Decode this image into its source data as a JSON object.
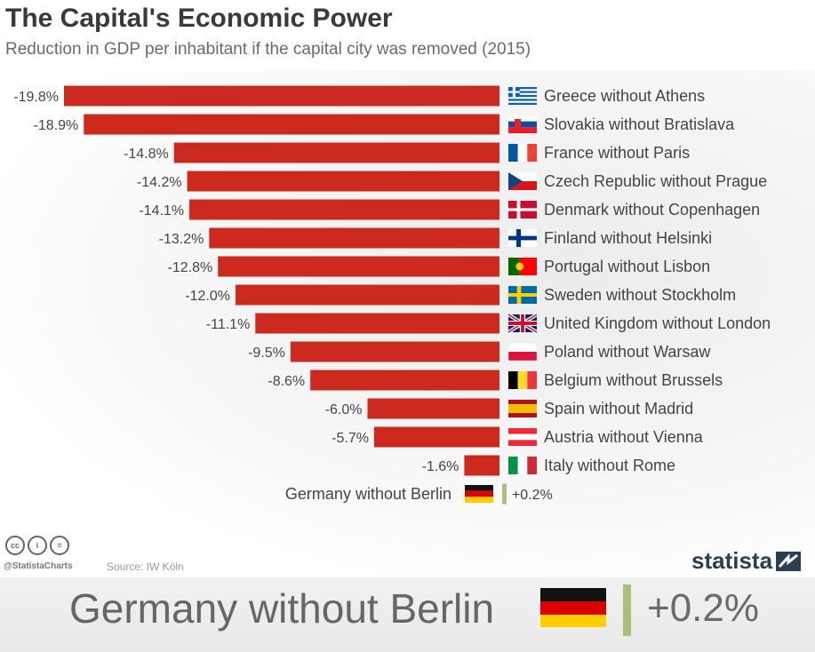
{
  "title": "The Capital's Economic Power",
  "subtitle": "Reduction in GDP per inhabitant if the capital city was removed (2015)",
  "footer": {
    "cc_icons": [
      "cc",
      "i",
      "="
    ],
    "handle": "@StatistaCharts",
    "source": "Source: IW Köln",
    "brand": "statista"
  },
  "zoom": {
    "label": "Germany without Berlin",
    "value": "+0.2%",
    "flag": "germany"
  },
  "colors": {
    "bar_negative": "#cc2a1e",
    "bar_positive": "#a7c07a",
    "label_text": "#444444"
  },
  "chart_data": {
    "type": "bar",
    "orientation": "horizontal",
    "unit": "%",
    "categories": [
      "Greece without Athens",
      "Slovakia without Bratislava",
      "France without Paris",
      "Czech Republic without Prague",
      "Denmark without Copenhagen",
      "Finland without Helsinki",
      "Portugal without Lisbon",
      "Sweden without Stockholm",
      "United Kingdom without London",
      "Poland without Warsaw",
      "Belgium without Brussels",
      "Spain without Madrid",
      "Austria without Vienna",
      "Italy without Rome",
      "Germany without Berlin"
    ],
    "values": [
      -19.8,
      -18.9,
      -14.8,
      -14.2,
      -14.1,
      -13.2,
      -12.8,
      -12.0,
      -11.1,
      -9.5,
      -8.6,
      -6.0,
      -5.7,
      -1.6,
      0.2
    ],
    "value_labels": [
      "-19.8%",
      "-18.9%",
      "-14.8%",
      "-14.2%",
      "-14.1%",
      "-13.2%",
      "-12.8%",
      "-12.0%",
      "-11.1%",
      "-9.5%",
      "-8.6%",
      "-6.0%",
      "-5.7%",
      "-1.6%",
      "+0.2%"
    ],
    "flags": [
      "greece",
      "slovakia",
      "france",
      "czech",
      "denmark",
      "finland",
      "portugal",
      "sweden",
      "uk",
      "poland",
      "belgium",
      "spain",
      "austria",
      "italy",
      "germany"
    ],
    "xlim": [
      -19.8,
      0.2
    ],
    "grid": false,
    "legend": "none"
  }
}
